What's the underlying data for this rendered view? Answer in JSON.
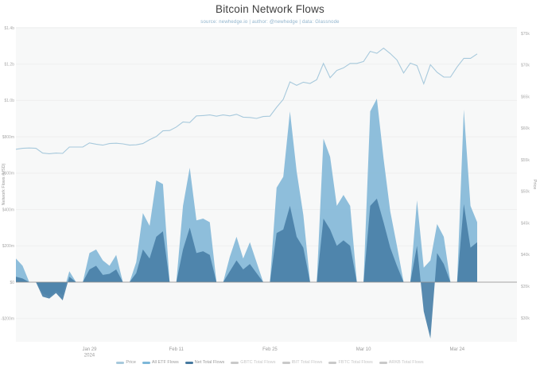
{
  "page": {
    "title": "Bitcoin Network Flows",
    "subtitle": "source: newhedge.io  |  author: @newhedge  |  data: Glassnode"
  },
  "chart_data": {
    "type": "area",
    "title": "Bitcoin Network Flows",
    "grid": true,
    "legend_position": "bottom",
    "start_date": "2024-01-18",
    "end_date": "2024-03-27",
    "frequency": "daily",
    "points": 70,
    "left_axis": {
      "label": "Network Flows (USD)",
      "unit": "$M",
      "range_musd": [
        -350,
        1400
      ],
      "tick_labels": [
        "$1.4b",
        "$1.2b",
        "$1.0b",
        "$800m",
        "$600m",
        "$400m",
        "$200m",
        "$0",
        "-$200m"
      ],
      "tick_values": [
        1400,
        1200,
        1000,
        800,
        600,
        400,
        200,
        0,
        -200
      ]
    },
    "right_axis": {
      "label": "Price",
      "unit": "$k",
      "range_k": [
        30,
        75
      ],
      "tick_labels": [
        "$75k",
        "$70k",
        "$65k",
        "$60k",
        "$55k",
        "$50k",
        "$45k",
        "$40k",
        "$35k",
        "$30k"
      ]
    },
    "x_axis": {
      "ticks": [
        {
          "label": "Jan 29",
          "sub": "2024",
          "index": 11
        },
        {
          "label": "Feb 11",
          "sub": "",
          "index": 24
        },
        {
          "label": "Feb 25",
          "sub": "",
          "index": 38
        },
        {
          "label": "Mar 10",
          "sub": "",
          "index": 52
        },
        {
          "label": "Mar 24",
          "sub": "",
          "index": 66
        }
      ]
    },
    "series": [
      {
        "name": "Price",
        "type": "line",
        "axis": "price",
        "unit": "$k",
        "color": "#a7c9dc",
        "values": [
          41.3,
          41.6,
          41.7,
          41.6,
          40.1,
          39.9,
          40.1,
          40.0,
          42.0,
          42.0,
          42.0,
          43.3,
          42.9,
          42.6,
          43.1,
          43.2,
          43.0,
          42.6,
          42.7,
          43.1,
          44.3,
          45.3,
          47.1,
          47.2,
          48.3,
          49.9,
          49.7,
          51.8,
          51.9,
          52.1,
          51.7,
          52.1,
          51.8,
          52.3,
          51.4,
          51.3,
          51.0,
          51.6,
          51.7,
          54.5,
          57.0,
          62.5,
          61.4,
          62.4,
          62.0,
          63.2,
          68.3,
          63.8,
          66.1,
          66.9,
          68.3,
          68.3,
          68.9,
          72.1,
          71.5,
          73.1,
          71.4,
          69.4,
          65.3,
          68.4,
          67.6,
          61.9,
          67.9,
          65.5,
          64.0,
          64.0,
          67.2,
          69.9,
          69.9,
          71.3
        ]
      },
      {
        "name": "All ETF Flows",
        "type": "area",
        "axis": "flows",
        "unit": "$M",
        "color": "#84b9d8",
        "values": [
          130,
          90,
          0,
          0,
          -60,
          -80,
          -50,
          -70,
          60,
          0,
          0,
          160,
          180,
          120,
          90,
          150,
          0,
          0,
          110,
          380,
          310,
          560,
          540,
          0,
          0,
          420,
          630,
          340,
          350,
          330,
          0,
          0,
          140,
          250,
          130,
          220,
          110,
          0,
          0,
          520,
          580,
          940,
          610,
          370,
          0,
          0,
          790,
          690,
          420,
          480,
          420,
          0,
          0,
          940,
          1010,
          680,
          390,
          200,
          0,
          0,
          450,
          80,
          120,
          320,
          250,
          0,
          0,
          950,
          420,
          330
        ]
      },
      {
        "name": "Net Total Flows",
        "type": "area",
        "axis": "flows",
        "unit": "$M",
        "color": "#4a80a8",
        "values": [
          30,
          20,
          0,
          0,
          -80,
          -90,
          -60,
          -100,
          30,
          0,
          0,
          70,
          90,
          40,
          46,
          70,
          0,
          0,
          50,
          180,
          130,
          250,
          280,
          0,
          0,
          180,
          300,
          160,
          170,
          150,
          0,
          0,
          60,
          120,
          70,
          100,
          50,
          0,
          0,
          270,
          290,
          420,
          250,
          190,
          0,
          0,
          350,
          290,
          200,
          230,
          200,
          0,
          0,
          420,
          460,
          330,
          190,
          90,
          0,
          0,
          200,
          -160,
          -310,
          160,
          100,
          0,
          0,
          430,
          190,
          220
        ]
      }
    ],
    "legend": [
      {
        "label": "Price",
        "color": "#a7c9dc",
        "active": true
      },
      {
        "label": "All ETF Flows",
        "color": "#7db7d8",
        "active": true
      },
      {
        "label": "Net Total Flows",
        "color": "#46799f",
        "active": true
      },
      {
        "label": "GBTC Total Flows",
        "color": "#c9c9c9",
        "active": false
      },
      {
        "label": "IBIT Total Flows",
        "color": "#c9c9c9",
        "active": false
      },
      {
        "label": "FBTC Total Flows",
        "color": "#c9c9c9",
        "active": false
      },
      {
        "label": "ARKB Total Flows",
        "color": "#c9c9c9",
        "active": false
      }
    ],
    "colors": {
      "plot_bg": "#f7f8f8",
      "grid": "#efefef",
      "zero_line": "#919191",
      "tick_text": "#ababab",
      "axis_label": "#9a9a9a",
      "x_tick_text": "#9a9a9a"
    }
  }
}
